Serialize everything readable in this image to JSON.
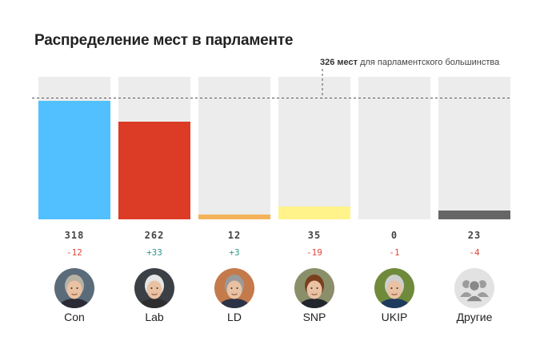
{
  "title": "Распределение мест в парламенте",
  "majority": {
    "seats": 326,
    "value_text": "326 мест",
    "rest_text": " для парламентского большинства"
  },
  "chart_data": {
    "type": "bar",
    "title": "Распределение мест в парламенте",
    "categories": [
      "Con",
      "Lab",
      "LD",
      "SNP",
      "UKIP",
      "Другие"
    ],
    "values": [
      318,
      262,
      12,
      35,
      0,
      23
    ],
    "changes": [
      "-12",
      "+33",
      "+3",
      "-19",
      "-1",
      "-4"
    ],
    "ylim": [
      0,
      383
    ],
    "reference_line": {
      "value": 326,
      "label": "326 мест для парламентского большинства"
    },
    "colors": [
      "#52c0ff",
      "#dc3b25",
      "#f4b35a",
      "#fff38a",
      "#ececec",
      "#666666"
    ],
    "track_color": "#ececec",
    "change_colors": {
      "negative": "#e0473a",
      "positive": "#2f9a8a"
    },
    "avatars": [
      "portrait-icon",
      "portrait-icon",
      "portrait-icon",
      "portrait-icon",
      "portrait-icon",
      "group-icon"
    ]
  }
}
